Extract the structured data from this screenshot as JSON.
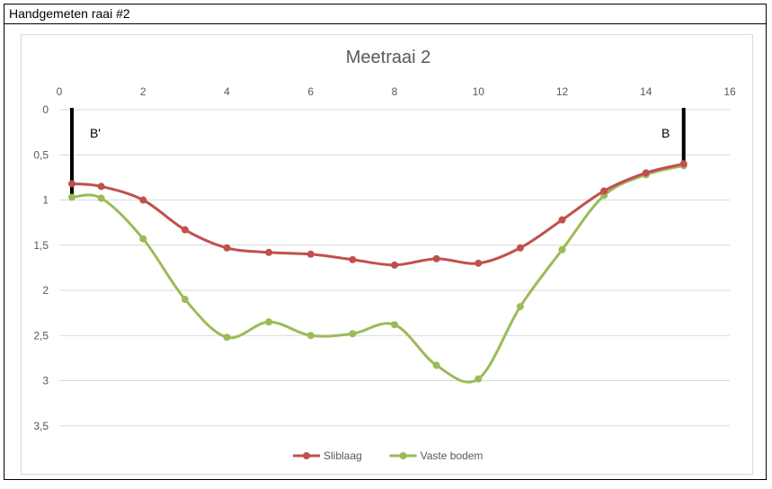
{
  "header": {
    "title": "Handgemeten raai #2"
  },
  "chart_data": {
    "type": "line",
    "title": "Meetraai 2",
    "xlabel": "",
    "ylabel": "",
    "xlim": [
      0,
      16
    ],
    "ylim": [
      0,
      4
    ],
    "y_inverted": true,
    "x_axis_position": "top",
    "x_ticks": [
      "0",
      "2",
      "4",
      "6",
      "8",
      "10",
      "12",
      "14",
      "16"
    ],
    "y_ticks": [
      "0",
      "0,5",
      "1",
      "1,5",
      "2",
      "2,5",
      "3",
      "3,5"
    ],
    "grid": "horizontal",
    "legend_position": "bottom",
    "series": [
      {
        "name": "Sliblaag",
        "color": "#c0504d",
        "x": [
          0.3,
          1,
          2,
          3,
          4,
          5,
          6,
          7,
          8,
          9,
          10,
          11,
          12,
          13,
          14,
          14.9
        ],
        "y": [
          0.82,
          0.85,
          1.0,
          1.33,
          1.53,
          1.58,
          1.6,
          1.66,
          1.72,
          1.65,
          1.7,
          1.53,
          1.22,
          0.9,
          0.7,
          0.6
        ]
      },
      {
        "name": "Vaste bodem",
        "color": "#9bbb59",
        "x": [
          0.3,
          1,
          2,
          3,
          4,
          5,
          6,
          7,
          8,
          9,
          10,
          11,
          12,
          13,
          14,
          14.9
        ],
        "y": [
          0.97,
          0.98,
          1.43,
          2.1,
          2.52,
          2.35,
          2.5,
          2.48,
          2.38,
          2.83,
          2.98,
          2.18,
          1.55,
          0.95,
          0.72,
          0.62
        ]
      }
    ],
    "annotations": [
      {
        "label": "B'",
        "x": 0.3
      },
      {
        "label": "B",
        "x": 14.9
      }
    ]
  }
}
